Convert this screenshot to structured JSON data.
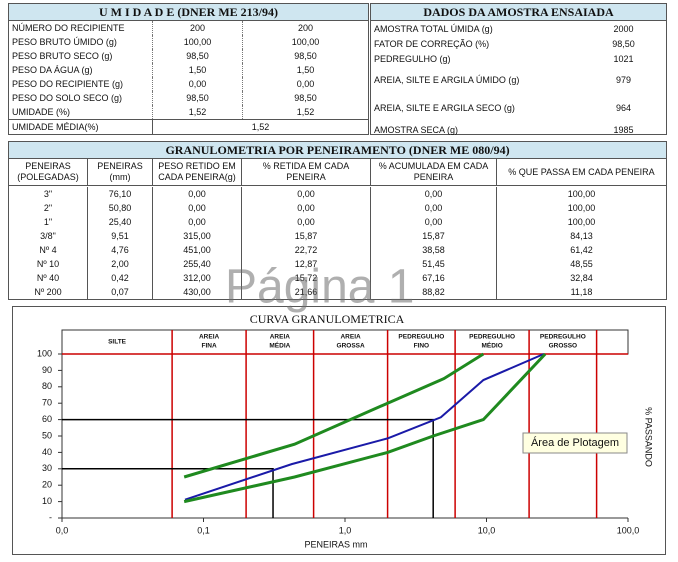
{
  "umidade": {
    "title": "U M I D A D E (DNER ME 213/94)",
    "rows": [
      [
        "NÚMERO DO RECIPIENTE",
        "200",
        "200"
      ],
      [
        "PESO BRUTO ÚMIDO (g)",
        "100,00",
        "100,00"
      ],
      [
        "PESO BRUTO SECO (g)",
        "98,50",
        "98,50"
      ],
      [
        "PESO DA ÁGUA (g)",
        "1,50",
        "1,50"
      ],
      [
        "PESO DO RECIPIENTE (g)",
        "0,00",
        "0,00"
      ],
      [
        "PESO DO SOLO SECO (g)",
        "98,50",
        "98,50"
      ],
      [
        "UMIDADE (%)",
        "1,52",
        "1,52"
      ]
    ],
    "media": [
      "UMIDADE MÉDIA(%)",
      "1,52"
    ]
  },
  "amostra": {
    "title": "DADOS DA AMOSTRA ENSAIADA",
    "rows": [
      [
        "AMOSTRA TOTAL ÚMIDA (g)",
        "2000"
      ],
      [
        "FATOR DE CORREÇÃO (%)",
        "98,50"
      ],
      [
        "PEDREGULHO (g)",
        "1021"
      ],
      [
        "AREIA, SILTE E ARGILA ÚMIDO (g)",
        "979"
      ],
      [
        "AREIA, SILTE E ARGILA SECO (g)",
        "964"
      ],
      [
        "AMOSTRA SECA (g)",
        "1985"
      ]
    ]
  },
  "granulometria": {
    "title": "GRANULOMETRIA POR PENEIRAMENTO (DNER ME 080/94)",
    "headers": [
      "PENEIRAS (POLEGADAS)",
      "PENEIRAS (mm)",
      "PESO RETIDO EM CADA PENEIRA(g)",
      "% RETIDA EM CADA PENEIRA",
      "% ACUMULADA EM CADA PENEIRA",
      "% QUE PASSA EM CADA PENEIRA"
    ],
    "rows": [
      [
        "3\"",
        "76,10",
        "0,00",
        "0,00",
        "0,00",
        "100,00"
      ],
      [
        "2\"",
        "50,80",
        "0,00",
        "0,00",
        "0,00",
        "100,00"
      ],
      [
        "1\"",
        "25,40",
        "0,00",
        "0,00",
        "0,00",
        "100,00"
      ],
      [
        "3/8\"",
        "9,51",
        "315,00",
        "15,87",
        "15,87",
        "84,13"
      ],
      [
        "Nº 4",
        "4,76",
        "451,00",
        "22,72",
        "38,58",
        "61,42"
      ],
      [
        "Nº 10",
        "2,00",
        "255,40",
        "12,87",
        "51,45",
        "48,55"
      ],
      [
        "Nº 40",
        "0,42",
        "312,00",
        "15,72",
        "67,16",
        "32,84"
      ],
      [
        "Nº 200",
        "0,07",
        "430,00",
        "21,66",
        "88,82",
        "11,18"
      ]
    ]
  },
  "watermark": "Página 1",
  "tooltip": "Área de Plotagem",
  "chart_data": {
    "type": "line",
    "title": "CURVA GRANULOMETRICA",
    "x_label": "PENEIRAS mm",
    "y_label": "% PASSANDO",
    "log_x": true,
    "xlim": [
      0.01,
      100
    ],
    "xticks": [
      {
        "value": 0.01,
        "label": "0,0"
      },
      {
        "value": 0.1,
        "label": "0,1"
      },
      {
        "value": 1,
        "label": "1,0"
      },
      {
        "value": 10,
        "label": "10,0"
      },
      {
        "value": 100,
        "label": "100,0"
      }
    ],
    "ylim": [
      0,
      100
    ],
    "yticks": [
      {
        "value": 0,
        "label": "-"
      },
      10,
      20,
      30,
      40,
      50,
      60,
      70,
      80,
      90,
      100
    ],
    "zones": [
      [
        "SILTE"
      ],
      [
        "AREIA",
        "FINA"
      ],
      [
        "AREIA",
        "MÉDIA"
      ],
      [
        "AREIA",
        "GROSSA"
      ],
      [
        "PEDREGULHO",
        "FINO"
      ],
      [
        "PEDREGULHO",
        "MÉDIO"
      ],
      [
        "PEDREGULHO",
        "GROSSO"
      ]
    ],
    "zone_bounds": [
      0.06,
      0.2,
      0.6,
      2,
      6,
      20,
      60
    ],
    "zone_color": "#cc0000",
    "series": [
      {
        "color": "#1a1aa8",
        "x": [
          0.074,
          0.42,
          2,
          4.76,
          9.51,
          25.4
        ],
        "y": [
          11.18,
          32.84,
          48.55,
          61.42,
          84.13,
          100
        ]
      },
      {
        "color": "#1f8a1f",
        "x": [
          0.073,
          0.44,
          2,
          5,
          9.5
        ],
        "y": [
          25,
          45,
          70,
          85,
          100
        ]
      },
      {
        "color": "#1f8a1f",
        "x": [
          0.073,
          0.44,
          2,
          4.2,
          9.5,
          26
        ],
        "y": [
          10,
          25,
          40,
          50,
          60,
          100
        ]
      }
    ],
    "reference_lines": [
      {
        "x": 4.2,
        "y": 60
      },
      {
        "x": 0.31,
        "y": 30
      }
    ],
    "reference_color": "#000000"
  }
}
